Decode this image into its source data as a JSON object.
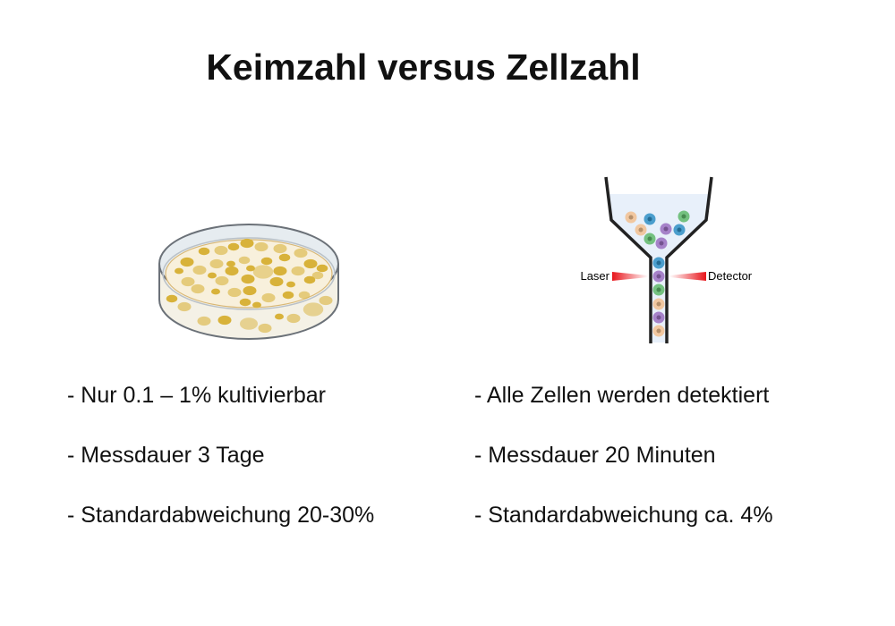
{
  "title": "Keimzahl versus Zellzahl",
  "left": {
    "illustration": "petri-dish-with-colonies",
    "bullets": [
      "- Nur 0.1 – 1% kultivierbar",
      "- Messdauer 3 Tage",
      "- Standardabweichung 20-30%"
    ]
  },
  "right": {
    "illustration": "flow-cytometer-funnel",
    "laser_label": "Laser",
    "detector_label": "Detector",
    "bullets": [
      "- Alle Zellen werden detektiert",
      "- Messdauer 20 Minuten",
      "- Standardabweichung ca. 4%"
    ]
  },
  "colors": {
    "colony": "#d8b23a",
    "agar": "#f7efd9",
    "laser": "#e8151b",
    "cell_orange": "#f2c08f",
    "cell_blue": "#2f8fc4",
    "cell_green": "#5fb86a",
    "cell_purple": "#9a6fc0"
  }
}
